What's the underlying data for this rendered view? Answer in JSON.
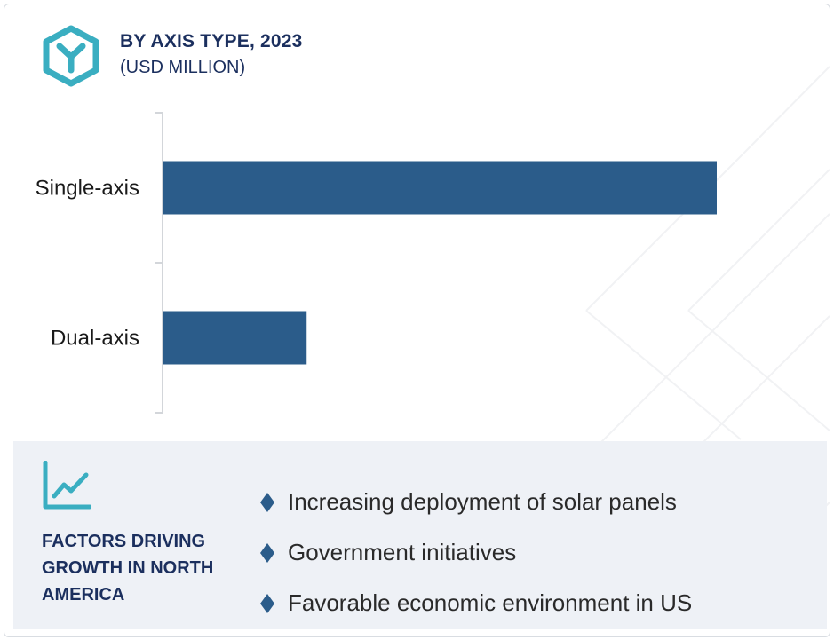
{
  "header": {
    "title": "BY AXIS TYPE, 2023",
    "subtitle": "(USD MILLION)",
    "logo_icon": "hexagon-y-icon"
  },
  "colors": {
    "bar": "#2b5c8a",
    "title": "#1b2f5e",
    "logo": "#3aaec1",
    "factors_bg": "#eef1f6",
    "bullet": "#2b5c8a"
  },
  "chart_data": {
    "type": "bar",
    "orientation": "horizontal",
    "categories": [
      "Single-axis",
      "Dual-axis"
    ],
    "values": [
      100,
      26
    ],
    "value_axis_shown": false,
    "grid": false,
    "legend": "none"
  },
  "factors": {
    "icon": "trend-line-chart-icon",
    "title": "FACTORS DRIVING GROWTH IN NORTH AMERICA",
    "bullet_icon": "diamond-icon",
    "items": [
      "Increasing deployment of solar panels",
      "Government initiatives",
      "Favorable economic environment in US"
    ]
  }
}
